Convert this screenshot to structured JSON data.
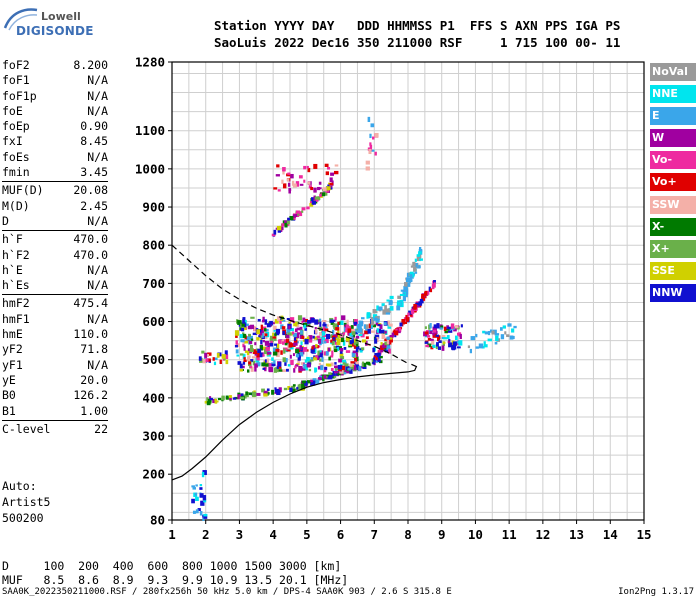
{
  "logo": {
    "line1": "Lowell",
    "line2": "DIGISONDE"
  },
  "header": {
    "line1": "Station YYYY DAY   DDD HHMMSS P1  FFS S AXN PPS IGA PS",
    "line2": "SaoLuis 2022 Dec16 350 211000 RSF     1 715 100 00- 11"
  },
  "params": [
    [
      {
        "k": "foF2",
        "v": "8.200"
      },
      {
        "k": "foF1",
        "v": "N/A"
      },
      {
        "k": "foF1p",
        "v": "N/A"
      },
      {
        "k": "foE",
        "v": "N/A"
      },
      {
        "k": "foEp",
        "v": "0.90"
      },
      {
        "k": "fxI",
        "v": "8.45"
      },
      {
        "k": "foEs",
        "v": "N/A"
      },
      {
        "k": "fmin",
        "v": "3.45"
      }
    ],
    [
      {
        "k": "MUF(D)",
        "v": "20.08"
      },
      {
        "k": "M(D)",
        "v": "2.45"
      },
      {
        "k": "D",
        "v": "N/A"
      }
    ],
    [
      {
        "k": "h`F",
        "v": "470.0"
      },
      {
        "k": "h`F2",
        "v": "470.0"
      },
      {
        "k": "h`E",
        "v": "N/A"
      },
      {
        "k": "h`Es",
        "v": "N/A"
      }
    ],
    [
      {
        "k": "hmF2",
        "v": "475.4"
      },
      {
        "k": "hmF1",
        "v": "N/A"
      },
      {
        "k": "hmE",
        "v": "110.0"
      },
      {
        "k": "yF2",
        "v": "71.8"
      },
      {
        "k": "yF1",
        "v": "N/A"
      },
      {
        "k": "yE",
        "v": "20.0"
      },
      {
        "k": "B0",
        "v": "126.2"
      },
      {
        "k": "B1",
        "v": "1.00"
      }
    ],
    [
      {
        "k": "C-level",
        "v": "22"
      }
    ]
  ],
  "auto": {
    "line1": "Auto:",
    "line2": "Artist5",
    "line3": "500200"
  },
  "legend": [
    {
      "label": "NoVal",
      "color": "#9a9a9a"
    },
    {
      "label": "NNE",
      "color": "#00e5ee"
    },
    {
      "label": "E",
      "color": "#3aa6ea"
    },
    {
      "label": "W",
      "color": "#a000a0"
    },
    {
      "label": "Vo-",
      "color": "#ee2aa0"
    },
    {
      "label": "Vo+",
      "color": "#e00000"
    },
    {
      "label": "SSW",
      "color": "#f4b0a8"
    },
    {
      "label": "X-",
      "color": "#007a00"
    },
    {
      "label": "X+",
      "color": "#6ab04a"
    },
    {
      "label": "SSE",
      "color": "#d0d000"
    },
    {
      "label": "NNW",
      "color": "#1010d0"
    }
  ],
  "muf_table": {
    "line1": "D     100  200  400  600  800 1000 1500 3000 [km]",
    "line2": "MUF   8.5  8.6  8.9  9.3  9.9 10.9 13.5 20.1 [MHz]"
  },
  "footer": {
    "left": "SAA0K_2022350211000.RSF / 280fx256h 50 kHz 5.0 km / DPS-4 SAA0K 903 / 2.6 S 315.8 E",
    "right": "Ion2Png 1.3.17"
  },
  "chart_data": {
    "type": "scatter",
    "xlim": [
      1,
      15
    ],
    "ylim": [
      80,
      1280
    ],
    "x_ticks": [
      "1",
      "2",
      "3",
      "4",
      "5",
      "6",
      "7",
      "8",
      "9",
      "10",
      "11",
      "12",
      "13",
      "14",
      "15"
    ],
    "y_ticks": [
      "80",
      "200",
      "300",
      "400",
      "500",
      "600",
      "700",
      "800",
      "900",
      "1000",
      "1100",
      "1280"
    ],
    "y_tick_values": [
      80,
      200,
      300,
      400,
      500,
      600,
      700,
      800,
      900,
      1000,
      1100,
      1280
    ],
    "grid": true,
    "lines": [
      {
        "style": "solid",
        "points": [
          [
            1,
            185
          ],
          [
            1.3,
            195
          ],
          [
            1.6,
            215
          ],
          [
            2,
            245
          ],
          [
            2.5,
            290
          ],
          [
            3,
            330
          ],
          [
            3.5,
            362
          ],
          [
            4,
            388
          ],
          [
            4.5,
            410
          ],
          [
            5,
            428
          ],
          [
            5.5,
            440
          ],
          [
            6,
            448
          ],
          [
            6.5,
            455
          ],
          [
            7,
            460
          ],
          [
            7.5,
            464
          ],
          [
            8,
            468
          ],
          [
            8.2,
            472
          ],
          [
            8.25,
            482
          ],
          [
            8.1,
            488
          ]
        ]
      },
      {
        "style": "dashed",
        "points": [
          [
            1,
            800
          ],
          [
            1.5,
            760
          ],
          [
            2,
            720
          ],
          [
            2.5,
            685
          ],
          [
            3,
            658
          ],
          [
            3.5,
            635
          ],
          [
            4,
            617
          ],
          [
            4.5,
            603
          ],
          [
            5,
            590
          ],
          [
            5.5,
            578
          ],
          [
            6,
            565
          ],
          [
            6.5,
            550
          ],
          [
            7,
            535
          ],
          [
            7.5,
            515
          ],
          [
            8,
            490
          ]
        ]
      }
    ],
    "trace_clusters": [
      {
        "x0": 2.0,
        "x1": 4.9,
        "y0": 390,
        "y1": 430,
        "n": 70,
        "kind": "lowtrace"
      },
      {
        "x0": 4.7,
        "x1": 7.2,
        "y0": 430,
        "y1": 500,
        "n": 90,
        "kind": "trace"
      },
      {
        "x0": 7.0,
        "x1": 8.8,
        "y0": 500,
        "y1": 700,
        "n": 110,
        "kind": "red"
      },
      {
        "x0": 2.9,
        "x1": 6.5,
        "y0": 470,
        "y1": 610,
        "n": 520,
        "kind": "mixed"
      },
      {
        "x0": 6.2,
        "x1": 7.5,
        "y0": 520,
        "y1": 600,
        "n": 80,
        "kind": "mixed"
      },
      {
        "x0": 7.7,
        "x1": 8.4,
        "y0": 640,
        "y1": 780,
        "n": 60,
        "kind": "cyan"
      },
      {
        "x0": 8.5,
        "x1": 9.6,
        "y0": 530,
        "y1": 590,
        "n": 80,
        "kind": "mixed"
      },
      {
        "x0": 9.8,
        "x1": 11.2,
        "y0": 540,
        "y1": 580,
        "n": 30,
        "kind": "cyan"
      },
      {
        "x0": 6.5,
        "x1": 7.6,
        "y0": 580,
        "y1": 650,
        "n": 40,
        "kind": "cyan"
      },
      {
        "x0": 4.0,
        "x1": 5.8,
        "y0": 830,
        "y1": 960,
        "n": 70,
        "kind": "band2"
      },
      {
        "x0": 4.0,
        "x1": 5.9,
        "y0": 940,
        "y1": 1010,
        "n": 45,
        "kind": "band3"
      },
      {
        "x0": 6.8,
        "x1": 7.1,
        "y0": 980,
        "y1": 1150,
        "n": 14,
        "kind": "sparse"
      },
      {
        "x0": 1.6,
        "x1": 2.0,
        "y0": 80,
        "y1": 210,
        "n": 25,
        "kind": "blue"
      },
      {
        "x0": 1.7,
        "x1": 2.8,
        "y0": 490,
        "y1": 520,
        "n": 25,
        "kind": "mixed"
      }
    ]
  }
}
